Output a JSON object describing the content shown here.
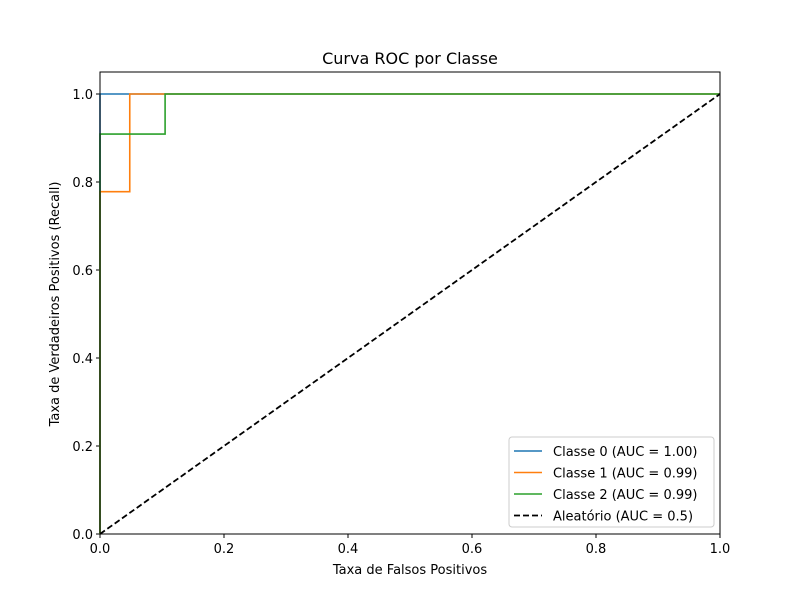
{
  "chart_data": {
    "type": "line",
    "title": "Curva ROC por Classe",
    "xlabel": "Taxa de Falsos Positivos",
    "ylabel": "Taxa de Verdadeiros Positivos (Recall)",
    "xlim": [
      0.0,
      1.0
    ],
    "ylim": [
      0.0,
      1.05
    ],
    "x_ticks": [
      0.0,
      0.2,
      0.4,
      0.6,
      0.8,
      1.0
    ],
    "x_tick_labels": [
      "0.0",
      "0.2",
      "0.4",
      "0.6",
      "0.8",
      "1.0"
    ],
    "y_ticks": [
      0.0,
      0.2,
      0.4,
      0.6,
      0.8,
      1.0
    ],
    "y_tick_labels": [
      "0.0",
      "0.2",
      "0.4",
      "0.6",
      "0.8",
      "1.0"
    ],
    "grid": false,
    "legend_position": "lower-right",
    "series": [
      {
        "name": "Classe 0 (AUC = 1.00)",
        "color": "#1f77b4",
        "style": "solid",
        "x": [
          0.0,
          0.0,
          1.0
        ],
        "y": [
          0.0,
          1.0,
          1.0
        ]
      },
      {
        "name": "Classe 1 (AUC = 0.99)",
        "color": "#ff7f0e",
        "style": "solid",
        "x": [
          0.0,
          0.0,
          0.048,
          0.048,
          1.0
        ],
        "y": [
          0.0,
          0.778,
          0.778,
          1.0,
          1.0
        ]
      },
      {
        "name": "Classe 2 (AUC = 0.99)",
        "color": "#2ca02c",
        "style": "solid",
        "x": [
          0.0,
          0.0,
          0.105,
          0.105,
          1.0
        ],
        "y": [
          0.0,
          0.909,
          0.909,
          1.0,
          1.0
        ]
      },
      {
        "name": "Aleatório (AUC = 0.5)",
        "color": "#000000",
        "style": "dashed",
        "x": [
          0.0,
          1.0
        ],
        "y": [
          0.0,
          1.0
        ]
      }
    ]
  }
}
